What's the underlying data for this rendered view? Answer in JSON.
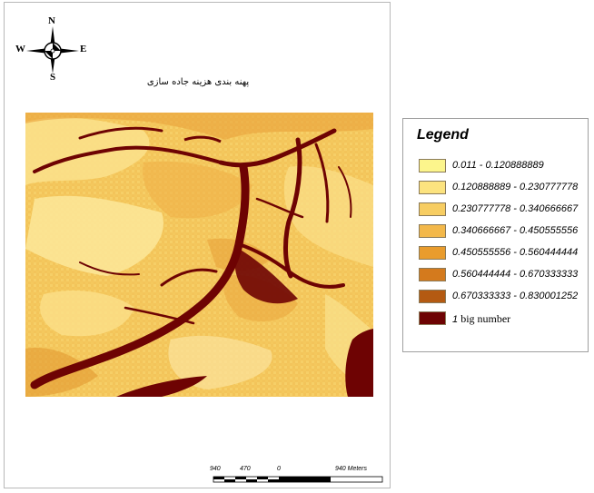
{
  "map": {
    "title": "پهنه بندی هزینه جاده سازی",
    "compass": {
      "north": "N",
      "south": "S",
      "east": "E",
      "west": "W"
    },
    "scale_bar": {
      "labels": [
        "940",
        "470",
        "0",
        "940 Meters"
      ]
    }
  },
  "legend": {
    "title": "Legend",
    "items": [
      {
        "label": "0.011 - 0.120888889",
        "color": "#fcf58c"
      },
      {
        "label": "0.120888889 - 0.230777778",
        "color": "#fce37f"
      },
      {
        "label": "0.230777778 - 0.340666667",
        "color": "#f7cd62"
      },
      {
        "label": "0.340666667 - 0.450555556",
        "color": "#f3b84a"
      },
      {
        "label": "0.450555556 - 0.560444444",
        "color": "#e99c2d"
      },
      {
        "label": "0.560444444 - 0.670333333",
        "color": "#d47a1d"
      },
      {
        "label": "0.670333333 - 0.830001252",
        "color": "#b45a12"
      },
      {
        "label": "big number",
        "prefix": "1",
        "color": "#6e0303"
      }
    ]
  }
}
